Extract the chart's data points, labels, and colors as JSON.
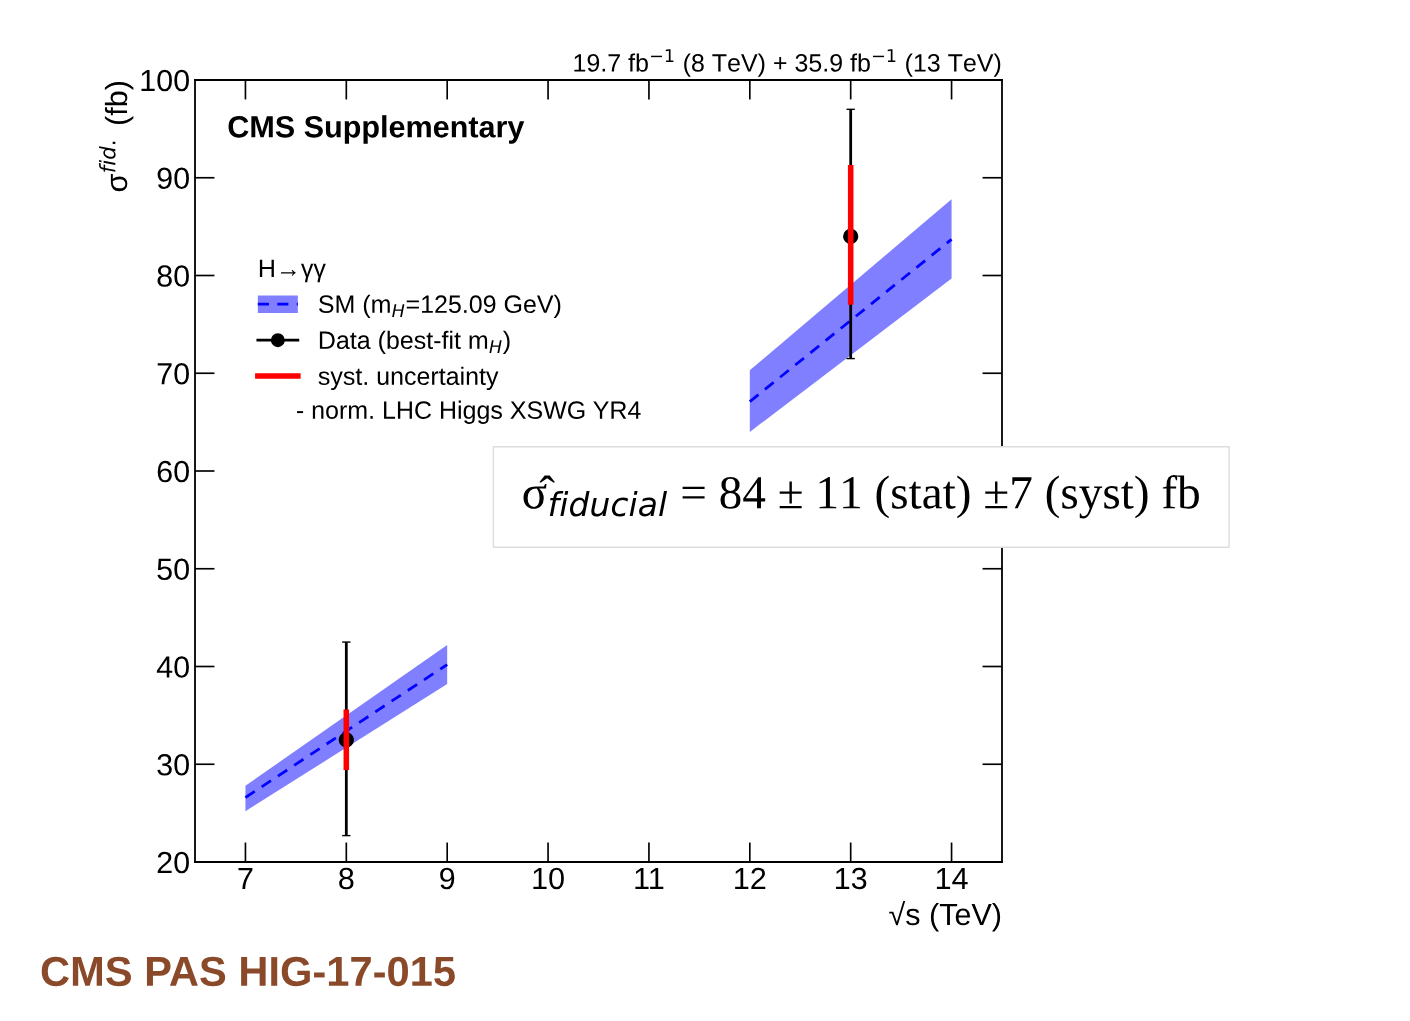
{
  "chart_data": {
    "type": "line",
    "subtitle": "19.7 fb$^{−1}$ (8 TeV) + 35.9 fb$^{−1}$ (13 TeV)",
    "xlabel": "√s (TeV)",
    "ylabel": "σ$^{fid.}$ (fb)",
    "legend_title": "H→γγ",
    "annotations": [
      "CMS Supplementary",
      "- norm. LHC Higgs XSWG YR4",
      "σ̂$_{fiducial}$ = 84 ± 11 (stat) ±7 (syst) fb",
      "CMS PAS HIG-17-015"
    ],
    "x": [
      8,
      13
    ],
    "series": [
      {
        "name": "SM (m$_{H}$=125.09 GeV)",
        "line_style": "dashed",
        "color": "#0000ff",
        "x": [
          7,
          9
        ],
        "values": [
          26.6,
          40.2
        ],
        "lower": [
          25.2,
          38.2
        ],
        "upper": [
          27.8,
          42.2
        ]
      },
      {
        "line_style": "dashed",
        "color": "#0000ff",
        "x": [
          12,
          14
        ],
        "values": [
          67.1,
          83.7
        ],
        "lower": [
          64.0,
          79.7
        ],
        "upper": [
          70.3,
          87.8
        ]
      },
      {
        "name": "Data (best-fit m$_{H}$)",
        "type": "scatter",
        "marker": "circle",
        "color": "#000000",
        "values": [
          32.5,
          84
        ],
        "errors": [
          [
            22.7,
            42.5
          ],
          [
            71.5,
            97.0
          ]
        ]
      },
      {
        "name": "syst. uncertainty",
        "type": "bar",
        "color": "#ff0000",
        "base": [
          29.4,
          77.0
        ],
        "values": [
          6.2,
          14.3
        ]
      }
    ],
    "xlim": [
      6.5,
      14.5
    ],
    "ylim": [
      20,
      100
    ],
    "xticks": [
      7,
      8,
      9,
      10,
      11,
      12,
      13,
      14
    ],
    "yticks": [
      20,
      30,
      40,
      50,
      60,
      70,
      80,
      90,
      100
    ],
    "grid": false,
    "legend": "top left"
  }
}
